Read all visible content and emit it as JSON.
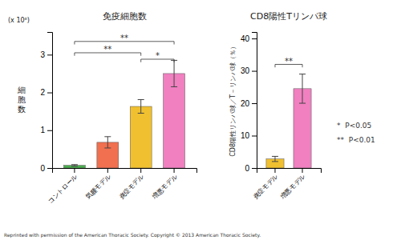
{
  "chart_data": [
    {
      "type": "bar",
      "title": "免疫細胞数",
      "y_label": "細胞数",
      "y_unit": "(x 10⁶)",
      "categories": [
        "コントロール",
        "気腫モデル",
        "炎症モデル",
        "増悪モデル"
      ],
      "values": [
        0.07,
        0.68,
        1.63,
        2.5
      ],
      "errors": [
        0.02,
        0.15,
        0.18,
        0.35
      ],
      "colors": [
        "#4caf50",
        "#f07050",
        "#f0c030",
        "#f080c0"
      ],
      "ylim": [
        0,
        3.6
      ],
      "yticks": [
        0,
        1,
        2,
        3
      ],
      "grid": false,
      "significance": [
        {
          "from": "コントロール",
          "to": "炎症モデル",
          "y": 3.05,
          "label": "**"
        },
        {
          "from": "コントロール",
          "to": "増悪モデル",
          "y": 3.35,
          "label": "**"
        },
        {
          "from": "炎症モデル",
          "to": "増悪モデル",
          "y": 2.88,
          "label": "*"
        }
      ]
    },
    {
      "type": "bar",
      "title": "CD8陽性Tリンパ球",
      "y_label": "CD8陽性リンパ球／T－リンパ球（％）",
      "categories": [
        "炎症モデル",
        "増悪モデル"
      ],
      "values": [
        2.8,
        24.5
      ],
      "errors": [
        0.8,
        4.5
      ],
      "colors": [
        "#f0c030",
        "#f080c0"
      ],
      "ylim": [
        0,
        42
      ],
      "yticks": [
        0,
        10,
        20,
        30,
        40
      ],
      "grid": false,
      "significance": [
        {
          "from": "炎症モデル",
          "to": "増悪モデル",
          "y": 32,
          "label": "**"
        }
      ],
      "annotations": [
        "*  P<0.05",
        "**  P<0.01"
      ],
      "footer": "Reprinted with permission of the American Thoracic Society. Copyright © 2013 American Thoracic Society."
    }
  ]
}
